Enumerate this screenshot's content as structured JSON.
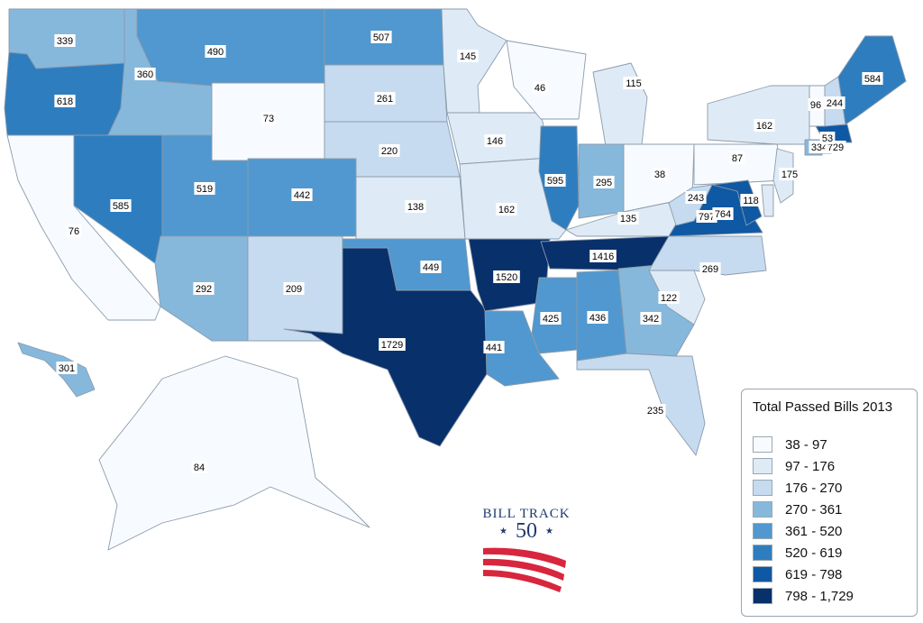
{
  "legend": {
    "title": "Total Passed Bills 2013",
    "bins": [
      {
        "label": "38 - 97",
        "color": "#f7fbff"
      },
      {
        "label": "97 - 176",
        "color": "#deebf7"
      },
      {
        "label": "176 - 270",
        "color": "#c6dbef"
      },
      {
        "label": "270 - 361",
        "color": "#86b8dc"
      },
      {
        "label": "361 - 520",
        "color": "#5098cf"
      },
      {
        "label": "520 - 619",
        "color": "#2e7ebf"
      },
      {
        "label": "619 - 798",
        "color": "#0f58a3"
      },
      {
        "label": "798 - 1,729",
        "color": "#08306b"
      }
    ]
  },
  "logo": {
    "line1": "BILL TRACK",
    "line2": "50",
    "star_left": "★",
    "star_right": "★",
    "stripe_color": "#d7263d",
    "text_color": "#1e3b6e"
  },
  "chart_data": {
    "type": "choropleth",
    "title": "Total Passed Bills 2013",
    "states": [
      {
        "state": "WA",
        "value": 339
      },
      {
        "state": "OR",
        "value": 618
      },
      {
        "state": "CA",
        "value": 76
      },
      {
        "state": "ID",
        "value": 360
      },
      {
        "state": "NV",
        "value": 585
      },
      {
        "state": "MT",
        "value": 490
      },
      {
        "state": "WY",
        "value": 73
      },
      {
        "state": "UT",
        "value": 519
      },
      {
        "state": "AZ",
        "value": 292
      },
      {
        "state": "CO",
        "value": 442
      },
      {
        "state": "NM",
        "value": 209
      },
      {
        "state": "ND",
        "value": 507
      },
      {
        "state": "SD",
        "value": 261
      },
      {
        "state": "NE",
        "value": 220
      },
      {
        "state": "KS",
        "value": 138
      },
      {
        "state": "OK",
        "value": 449
      },
      {
        "state": "TX",
        "value": 1729
      },
      {
        "state": "MN",
        "value": 145
      },
      {
        "state": "IA",
        "value": 146
      },
      {
        "state": "MO",
        "value": 162
      },
      {
        "state": "AR",
        "value": 1520
      },
      {
        "state": "LA",
        "value": 441
      },
      {
        "state": "WI",
        "value": 46
      },
      {
        "state": "IL",
        "value": 595
      },
      {
        "state": "MI",
        "value": 115
      },
      {
        "state": "IN",
        "value": 295
      },
      {
        "state": "OH",
        "value": 38
      },
      {
        "state": "KY",
        "value": 135
      },
      {
        "state": "TN",
        "value": 1416
      },
      {
        "state": "MS",
        "value": 425
      },
      {
        "state": "AL",
        "value": 436
      },
      {
        "state": "GA",
        "value": 342
      },
      {
        "state": "FL",
        "value": 235
      },
      {
        "state": "SC",
        "value": 122
      },
      {
        "state": "NC",
        "value": 269
      },
      {
        "state": "VA",
        "value": 797
      },
      {
        "state": "WV",
        "value": 243
      },
      {
        "state": "PA",
        "value": 87
      },
      {
        "state": "NY",
        "value": 162
      },
      {
        "state": "MD",
        "value": 764
      },
      {
        "state": "DE",
        "value": 118
      },
      {
        "state": "NJ",
        "value": 175
      },
      {
        "state": "CT",
        "value": 334
      },
      {
        "state": "MA",
        "value": 729
      },
      {
        "state": "RI",
        "value": 53
      },
      {
        "state": "VT",
        "value": 96
      },
      {
        "state": "NH",
        "value": 244
      },
      {
        "state": "ME",
        "value": 584
      },
      {
        "state": "AK",
        "value": 84
      },
      {
        "state": "HI",
        "value": 301
      }
    ]
  }
}
